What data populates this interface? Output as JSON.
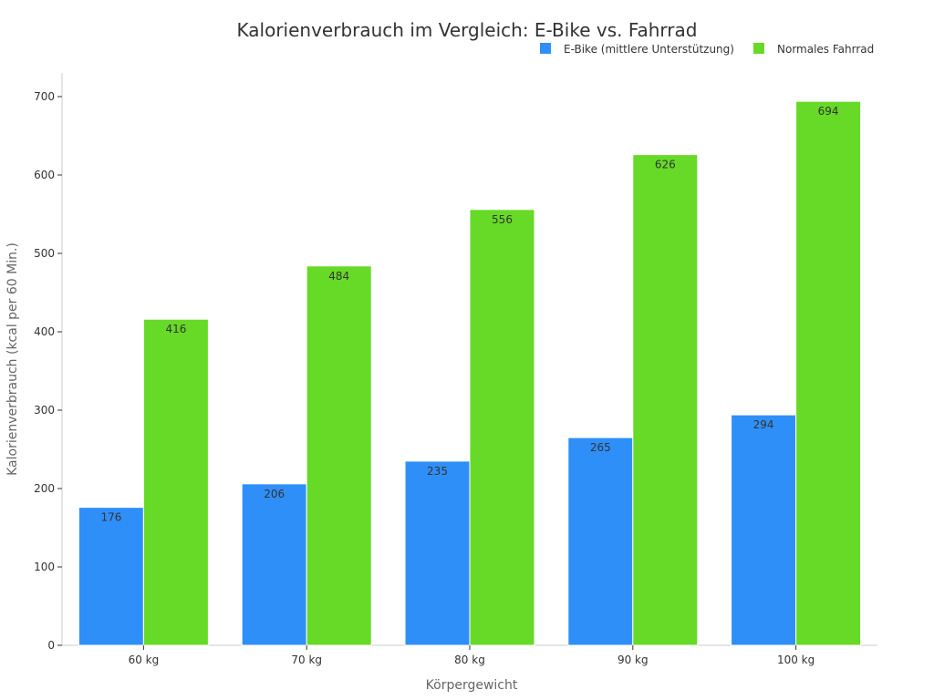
{
  "chart_data": {
    "type": "bar",
    "title": "Kalorienverbrauch im Vergleich: E-Bike vs. Fahrrad",
    "xlabel": "Körpergewicht",
    "ylabel": "Kalorienverbrauch (kcal per 60 Min.)",
    "categories": [
      "60 kg",
      "70 kg",
      "80 kg",
      "90 kg",
      "100 kg"
    ],
    "series": [
      {
        "name": "E-Bike (mittlere Unterstützung)",
        "color": "#2f8ff9",
        "values": [
          176,
          206,
          235,
          265,
          294
        ]
      },
      {
        "name": "Normales Fahrrad",
        "color": "#66da26",
        "values": [
          416,
          484,
          556,
          626,
          694
        ]
      }
    ],
    "ylim": [
      0,
      700
    ],
    "yticks": [
      0,
      100,
      200,
      300,
      400,
      500,
      600,
      700
    ],
    "grid": false,
    "legend_position": "top-right"
  }
}
